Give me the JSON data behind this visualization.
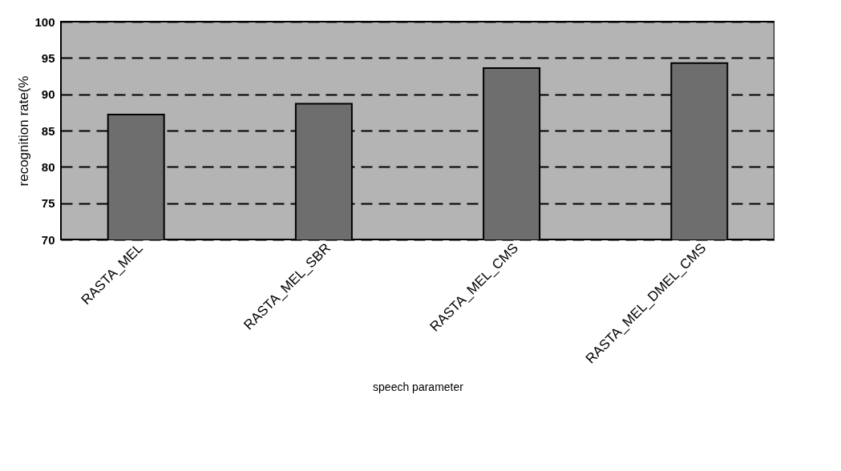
{
  "chart_data": {
    "type": "bar",
    "xlabel": "speech parameter",
    "ylabel": "recognition rate(%",
    "categories": [
      "RASTA_MEL",
      "RASTA_MEL_SBR",
      "RASTA_MEL_CMS",
      "RASTA_MEL_DMEL_CMS"
    ],
    "values": [
      87.2,
      88.7,
      93.6,
      94.3
    ],
    "color": "#6e6e6e",
    "ylim": [
      70,
      100
    ],
    "yticks": [
      70,
      75,
      80,
      85,
      90,
      95,
      100
    ],
    "grid": "y",
    "line_style": "dashed"
  }
}
